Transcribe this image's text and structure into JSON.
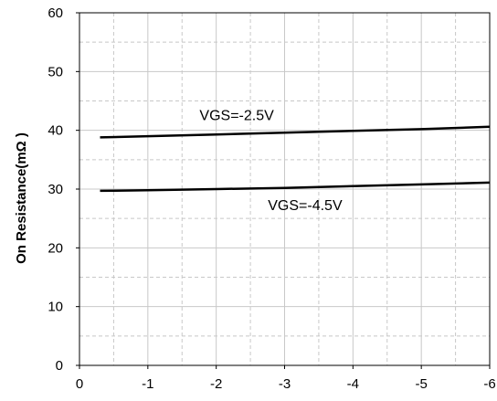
{
  "chart_data": {
    "type": "line",
    "title": "",
    "xlabel": "",
    "ylabel": "On Resistance(mΩ )",
    "xlim": [
      0,
      -6
    ],
    "ylim": [
      0,
      60
    ],
    "x_ticks": [
      0,
      -1,
      -2,
      -3,
      -4,
      -5,
      -6
    ],
    "y_ticks": [
      0,
      10,
      20,
      30,
      40,
      50,
      60
    ],
    "x_tick_labels": [
      "0",
      "-1",
      "-2",
      "-3",
      "-4",
      "-5",
      "-6"
    ],
    "y_tick_labels": [
      "0",
      "10",
      "20",
      "30",
      "40",
      "50",
      "60"
    ],
    "grid": true,
    "series": [
      {
        "name": "VGS=-2.5V",
        "x": [
          -0.3,
          -1,
          -2,
          -3,
          -4,
          -5,
          -6
        ],
        "values": [
          38.8,
          39.0,
          39.3,
          39.6,
          39.9,
          40.2,
          40.6
        ],
        "color": "#000000"
      },
      {
        "name": "VGS=-4.5V",
        "x": [
          -0.3,
          -1,
          -2,
          -3,
          -4,
          -5,
          -6
        ],
        "values": [
          29.7,
          29.8,
          30.0,
          30.2,
          30.5,
          30.8,
          31.1
        ],
        "color": "#000000"
      }
    ],
    "annotations": [
      {
        "text": "VGS=-2.5V",
        "x": -2.3,
        "y": 42.5
      },
      {
        "text": "VGS=-4.5V",
        "x": -3.3,
        "y": 27.2
      }
    ]
  }
}
